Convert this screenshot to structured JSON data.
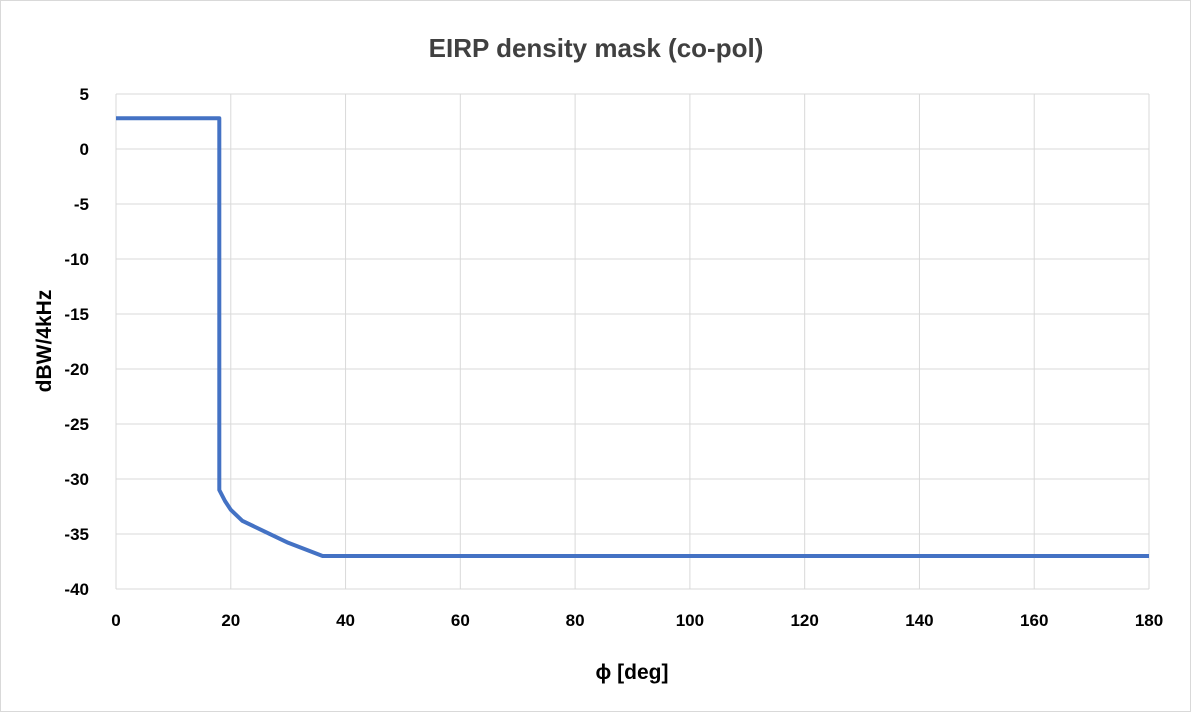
{
  "chart_data": {
    "type": "line",
    "title": "EIRP density mask (co-pol)",
    "xlabel": "ϕ [deg]",
    "ylabel": "dBW/4kHz",
    "xlim": [
      0,
      180
    ],
    "ylim": [
      -40,
      5
    ],
    "x_ticks": [
      0,
      20,
      40,
      60,
      80,
      100,
      120,
      140,
      160,
      180
    ],
    "y_ticks": [
      5,
      0,
      -5,
      -10,
      -15,
      -20,
      -25,
      -30,
      -35,
      -40
    ],
    "grid": true,
    "legend": "none",
    "series": [
      {
        "color": "#4472c4",
        "x": [
          0,
          18,
          18,
          19,
          20,
          22,
          26,
          30,
          36,
          48,
          180
        ],
        "y": [
          2.8,
          2.8,
          -31,
          -32,
          -32.8,
          -33.8,
          -34.8,
          -35.8,
          -37,
          -37,
          -37
        ]
      }
    ]
  }
}
